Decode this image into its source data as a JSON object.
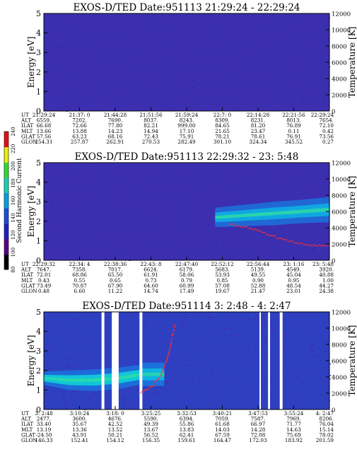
{
  "colorbar": {
    "label": "Second Harmonic Current",
    "ticks": [
      "80",
      "100",
      "120",
      "140",
      "160",
      "180",
      "200",
      "220",
      "240"
    ],
    "colors": [
      "#000000",
      "#5a0080",
      "#2020c8",
      "#1a4ee0",
      "#00a0e8",
      "#10d8b0",
      "#30e030",
      "#e8f000",
      "#e81010"
    ]
  },
  "chart_data": [
    {
      "type": "heatmap",
      "title": "EXOS-D/TED   Date:951113  21:29:24 - 22:29:24",
      "ylabel": "Energy [eV]",
      "y2label": "Temperature [K]",
      "ylim": [
        0,
        5
      ],
      "y2lim": [
        0,
        12000
      ],
      "yticks": [
        "0",
        "1",
        "2",
        "3",
        "4",
        "5"
      ],
      "y2ticks": [
        "0",
        "2000",
        "4000",
        "6000",
        "8000",
        "10000",
        "12000"
      ],
      "background": "#3b2fb0",
      "bands": [],
      "gaps": [],
      "trace": [],
      "ephemeris": {
        "labels": [
          "UT",
          "ALT",
          "ILAT",
          "MLT",
          "GLAT",
          "GLON"
        ],
        "columns": [
          [
            "21:29:24",
            "6559.",
            "66.68",
            "13.66",
            "57.56",
            "254.31"
          ],
          [
            "21:37: 0",
            "7202.",
            "72.66",
            "13.88",
            "63.23",
            "257.87"
          ],
          [
            "21:44:28",
            "7690.",
            "77.80",
            "14.23",
            "68.16",
            "262.91"
          ],
          [
            "21:51:56",
            "8037.",
            "82.21",
            "14.94",
            "72.43",
            "270.53"
          ],
          [
            "21:59:24",
            "8243.",
            "999.00",
            "17.10",
            "75.91",
            "282.49"
          ],
          [
            "22:7: 0",
            "8309.",
            "84.65",
            "21.65",
            "78.21",
            "301.10"
          ],
          [
            "22:14:28",
            "8231.",
            "81.20",
            "23.47",
            "78.61",
            "324.34"
          ],
          [
            "22:21:56",
            "8013.",
            "76.89",
            "0.11",
            "76.91",
            "345.52"
          ],
          [
            "22:29:24",
            "7654.",
            "72.10",
            "0.42",
            "73.56",
            "0.27"
          ]
        ]
      }
    },
    {
      "type": "heatmap",
      "title": "EXOS-D/TED   Date:951113  22:29:32 - 23: 5:48",
      "ylabel": "Energy [eV]",
      "y2label": "Temperature [K]",
      "ylim": [
        0,
        5
      ],
      "y2lim": [
        0,
        12000
      ],
      "yticks": [
        "0",
        "1",
        "2",
        "3",
        "4",
        "5"
      ],
      "y2ticks": [
        "0",
        "2000",
        "4000",
        "6000",
        "8000",
        "10000",
        "12000"
      ],
      "background": "#3b2fb0",
      "bands": [
        {
          "from": 0.6,
          "to": 1.0,
          "center": [
            2.2,
            2.3,
            2.4,
            2.5,
            2.6
          ],
          "halfwidth": [
            0.5,
            0.55,
            0.6,
            0.6,
            0.65
          ],
          "color": "#10a8e0"
        }
      ],
      "gaps": [],
      "trace": [
        [
          0.65,
          4400
        ],
        [
          0.7,
          4100
        ],
        [
          0.75,
          3600
        ],
        [
          0.8,
          3000
        ],
        [
          0.85,
          2400
        ],
        [
          0.9,
          2000
        ],
        [
          0.95,
          1850
        ],
        [
          1.0,
          1800
        ]
      ],
      "ephemeris": {
        "labels": [
          "UT",
          "ALT",
          "ILAT",
          "MLT",
          "GLAT",
          "GLON"
        ],
        "columns": [
          [
            "22:29:32",
            "7647.",
            "72.01",
            "0.43",
            "73.49",
            "0.48"
          ],
          [
            "22:34: 4",
            "7358.",
            "68.86",
            "0.55",
            "70.87",
            "6.60"
          ],
          [
            "22:38:36",
            "7017.",
            "65.50",
            "0.65",
            "67.90",
            "11.22"
          ],
          [
            "22:43: 8",
            "6624.",
            "61.91",
            "0.73",
            "64.60",
            "14.74"
          ],
          [
            "22:47:40",
            "6179.",
            "58.06",
            "0.79",
            "60.99",
            "17.49"
          ],
          [
            "22:52:12",
            "5683.",
            "53.93",
            "0.85",
            "57.08",
            "19.67"
          ],
          [
            "22:56:44",
            "5139.",
            "49.55",
            "0.90",
            "52.88",
            "21.47"
          ],
          [
            "23: 1:16",
            "4549.",
            "45.04",
            "0.95",
            "48.54",
            "23.01"
          ],
          [
            "23: 5:48",
            "3920.",
            "40.88",
            "1.00",
            "44.27",
            "24.38"
          ]
        ]
      }
    },
    {
      "type": "heatmap",
      "title": "EXOS-D/TED   Date:951114  3: 2:48 - 4: 2:47",
      "ylabel": "Energy [eV]",
      "y2label": "Temperature [K]",
      "ylim": [
        0,
        5
      ],
      "y2lim": [
        0,
        12000
      ],
      "yticks": [
        "0",
        "1",
        "2",
        "3",
        "4",
        "5"
      ],
      "y2ticks": [
        "0",
        "2000",
        "4000",
        "6000",
        "8000",
        "10000",
        "12000"
      ],
      "background": "#2e3fc0",
      "bands": [
        {
          "from": 0.0,
          "to": 0.34,
          "center": [
            1.6,
            1.5,
            1.5,
            1.6,
            1.8
          ],
          "halfwidth": [
            0.35,
            0.5,
            0.55,
            0.55,
            0.5
          ],
          "color": "#10c8d8"
        },
        {
          "from": 0.34,
          "to": 0.42,
          "center": [
            1.8,
            1.8
          ],
          "halfwidth": [
            0.6,
            0.6
          ],
          "color": "#10b8e0"
        }
      ],
      "gaps": [
        [
          0.202,
          0.212
        ],
        [
          0.238,
          0.262
        ],
        [
          0.335,
          0.345
        ],
        [
          0.755,
          0.76
        ],
        [
          0.785,
          0.792
        ],
        [
          0.826,
          0.836
        ]
      ],
      "trace": [
        [
          0.34,
          2000
        ],
        [
          0.38,
          2800
        ],
        [
          0.41,
          4200
        ],
        [
          0.43,
          6000
        ],
        [
          0.44,
          7200
        ],
        [
          0.45,
          9000
        ],
        [
          0.46,
          10500
        ]
      ],
      "ephemeris": {
        "labels": [
          "UT",
          "ALT",
          "ILAT",
          "MLT",
          "GLAT",
          "GLON"
        ],
        "columns": [
          [
            "3: 2:48",
            "2477.",
            "33.40",
            "13.19",
            "-24.50",
            "146.33"
          ],
          [
            "3:10:24",
            "3600.",
            "35.67",
            "13.36",
            "43.91",
            "152.41"
          ],
          [
            "3:18: 0",
            "4676.",
            "42.52",
            "13.52",
            "50.21",
            "154.12"
          ],
          [
            "3:25:25",
            "5590.",
            "49.39",
            "13.67",
            "56.52",
            "156.35"
          ],
          [
            "3:32:53",
            "6394.",
            "55.86",
            "13.83",
            "62.41",
            "159.61"
          ],
          [
            "3:40:21",
            "7059.",
            "61.68",
            "14.03",
            "67.59",
            "164.47"
          ],
          [
            "3:47:53",
            "7587.",
            "66.97",
            "14.28",
            "72.08",
            "172.03"
          ],
          [
            "3:55:24",
            "7969.",
            "71.77",
            "14.63",
            "75.69",
            "183.92"
          ],
          [
            "4: 2:47",
            "8206.",
            "76.04",
            "15.14",
            "78.02",
            "201.59"
          ]
        ]
      }
    }
  ]
}
